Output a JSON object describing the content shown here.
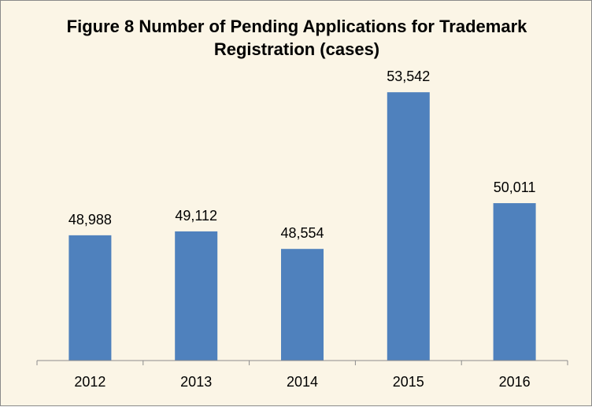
{
  "chart_data": {
    "type": "bar",
    "title": "Figure 8  Number of Pending Applications for Trademark\nRegistration  (cases)",
    "categories": [
      "2012",
      "2013",
      "2014",
      "2015",
      "2016"
    ],
    "values": [
      48988,
      49112,
      48554,
      53542,
      50011
    ],
    "data_labels": [
      "48,988",
      "49,112",
      "48,554",
      "53,542",
      "50,011"
    ],
    "ylim": [
      45000,
      55000
    ],
    "xlabel": "",
    "ylabel": "",
    "grid": false,
    "legend": "none",
    "colors": {
      "bar": "#4F81BD",
      "background": "#FBF5E6",
      "axis": "#8C8C8C"
    }
  }
}
